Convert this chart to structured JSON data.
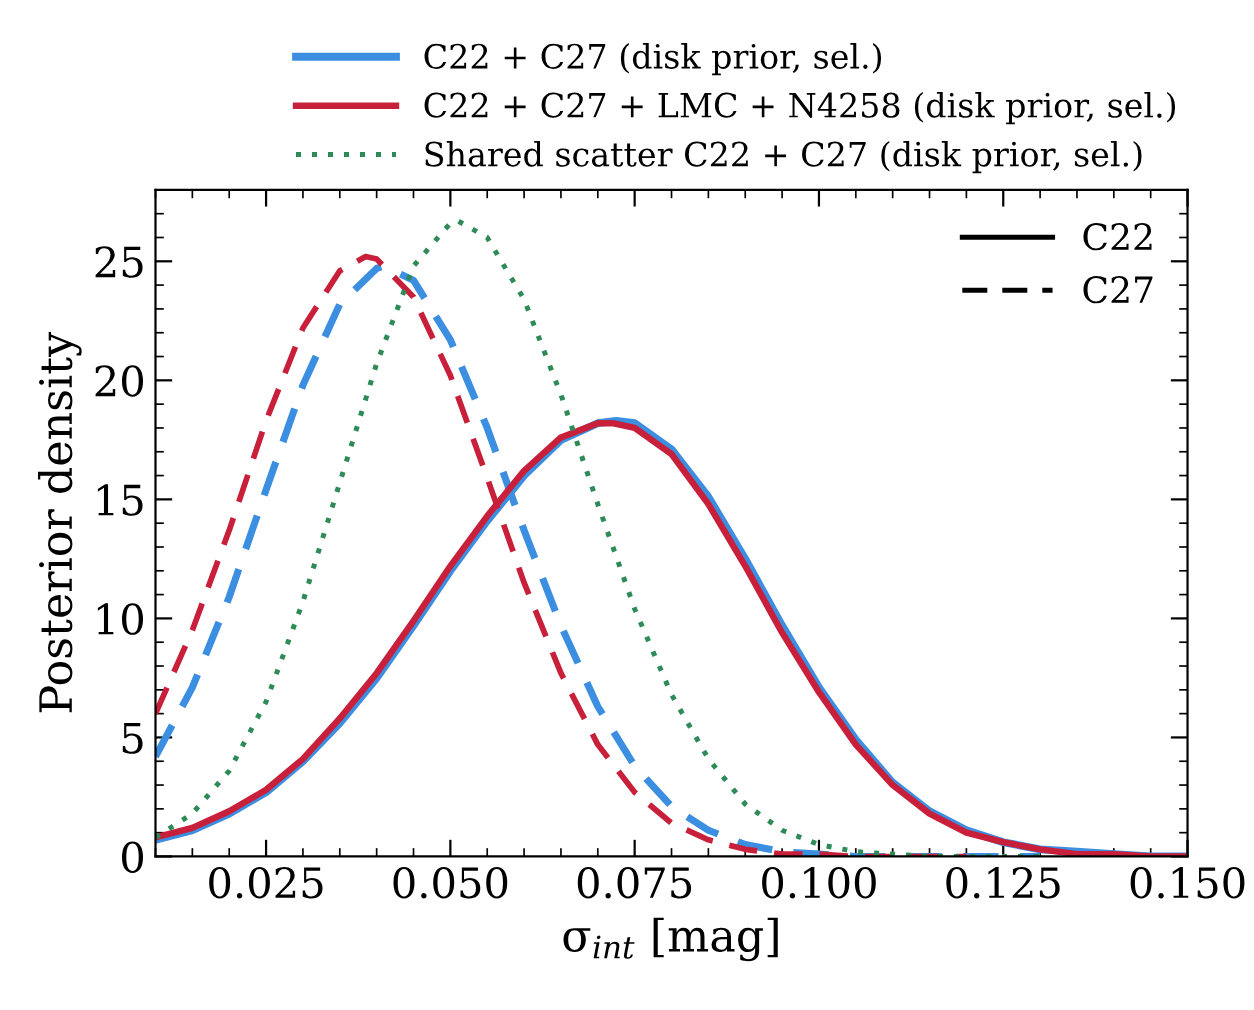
{
  "chart_data": {
    "type": "line",
    "xlabel": "σ$_{int}$ [mag]",
    "ylabel": "Posterior density",
    "xlim": [
      0.01,
      0.15
    ],
    "ylim": [
      0,
      28
    ],
    "xticks": [
      {
        "value": 0.025,
        "label": "0.025"
      },
      {
        "value": 0.05,
        "label": "0.050"
      },
      {
        "value": 0.075,
        "label": "0.075"
      },
      {
        "value": 0.1,
        "label": "0.100"
      },
      {
        "value": 0.125,
        "label": "0.125"
      },
      {
        "value": 0.15,
        "label": "0.150"
      }
    ],
    "yticks": [
      0,
      5,
      10,
      15,
      20,
      25
    ],
    "grid": false,
    "legend": "top",
    "marker": "none",
    "annotations": [
      "C22",
      "C27"
    ],
    "series": [
      {
        "name": "C22 + C27 (disk prior, sel.)",
        "color": "#3b8ee0",
        "line_style": "solid",
        "x": [
          0.01,
          0.015,
          0.02,
          0.025,
          0.03,
          0.035,
          0.04,
          0.045,
          0.05,
          0.055,
          0.06,
          0.065,
          0.07,
          0.0725,
          0.075,
          0.08,
          0.085,
          0.09,
          0.095,
          0.1,
          0.105,
          0.11,
          0.115,
          0.12,
          0.125,
          0.13,
          0.135,
          0.14,
          0.145,
          0.15
        ],
        "values": [
          0.7,
          1.1,
          1.8,
          2.7,
          4.0,
          5.6,
          7.5,
          9.7,
          12.0,
          14.1,
          16.0,
          17.5,
          18.2,
          18.3,
          18.2,
          17.1,
          15.1,
          12.5,
          9.7,
          7.1,
          4.9,
          3.1,
          1.9,
          1.1,
          0.6,
          0.3,
          0.2,
          0.1,
          0.0,
          0.0
        ]
      },
      {
        "color": "#3b8ee0",
        "line_style": "dashed",
        "x": [
          0.01,
          0.015,
          0.02,
          0.025,
          0.03,
          0.035,
          0.04,
          0.041,
          0.045,
          0.05,
          0.055,
          0.06,
          0.065,
          0.07,
          0.075,
          0.08,
          0.085,
          0.09,
          0.095,
          0.1,
          0.105,
          0.11,
          0.12,
          0.13
        ],
        "values": [
          4.2,
          7.1,
          10.9,
          15.4,
          19.8,
          23.2,
          24.7,
          24.8,
          24.2,
          21.7,
          18.0,
          13.7,
          9.7,
          6.3,
          3.8,
          2.1,
          1.1,
          0.5,
          0.2,
          0.1,
          0.0,
          0.0,
          0,
          0
        ]
      },
      {
        "name": "C22 + C27 + LMC + N4258 (disk prior, sel.)",
        "color": "#c8203a",
        "line_style": "solid",
        "x": [
          0.01,
          0.015,
          0.02,
          0.025,
          0.03,
          0.035,
          0.04,
          0.045,
          0.05,
          0.055,
          0.06,
          0.065,
          0.07,
          0.072,
          0.075,
          0.08,
          0.085,
          0.09,
          0.095,
          0.1,
          0.105,
          0.11,
          0.115,
          0.12,
          0.125,
          0.13,
          0.135,
          0.14,
          0.145,
          0.15
        ],
        "values": [
          0.8,
          1.2,
          1.9,
          2.8,
          4.1,
          5.8,
          7.7,
          9.9,
          12.2,
          14.3,
          16.2,
          17.6,
          18.2,
          18.2,
          18.0,
          16.9,
          14.8,
          12.2,
          9.4,
          6.9,
          4.7,
          3.0,
          1.8,
          1.0,
          0.6,
          0.3,
          0.1,
          0.1,
          0.0,
          0.0
        ]
      },
      {
        "color": "#c8203a",
        "line_style": "dashed",
        "x": [
          0.01,
          0.015,
          0.02,
          0.025,
          0.03,
          0.035,
          0.0385,
          0.04,
          0.045,
          0.05,
          0.055,
          0.06,
          0.065,
          0.07,
          0.075,
          0.08,
          0.085,
          0.09,
          0.095,
          0.1,
          0.105,
          0.11,
          0.12
        ],
        "values": [
          6.0,
          9.5,
          13.7,
          18.3,
          22.2,
          24.6,
          25.2,
          25.1,
          23.5,
          20.2,
          15.9,
          11.5,
          7.7,
          4.7,
          2.7,
          1.4,
          0.7,
          0.3,
          0.1,
          0.1,
          0.0,
          0,
          0
        ]
      },
      {
        "name": "Shared scatter C22 + C27 (disk prior, sel.)",
        "color": "#2e8b57",
        "line_style": "dotted",
        "x": [
          0.01,
          0.015,
          0.02,
          0.025,
          0.03,
          0.035,
          0.04,
          0.045,
          0.05,
          0.051,
          0.055,
          0.06,
          0.065,
          0.07,
          0.075,
          0.08,
          0.085,
          0.09,
          0.095,
          0.1,
          0.105,
          0.11,
          0.115,
          0.12,
          0.13
        ],
        "values": [
          0.8,
          1.8,
          3.6,
          6.5,
          10.7,
          15.7,
          20.7,
          24.8,
          26.6,
          26.7,
          26.0,
          23.4,
          19.4,
          14.8,
          10.4,
          6.8,
          4.1,
          2.2,
          1.1,
          0.5,
          0.2,
          0.1,
          0.0,
          0,
          0
        ]
      }
    ]
  }
}
